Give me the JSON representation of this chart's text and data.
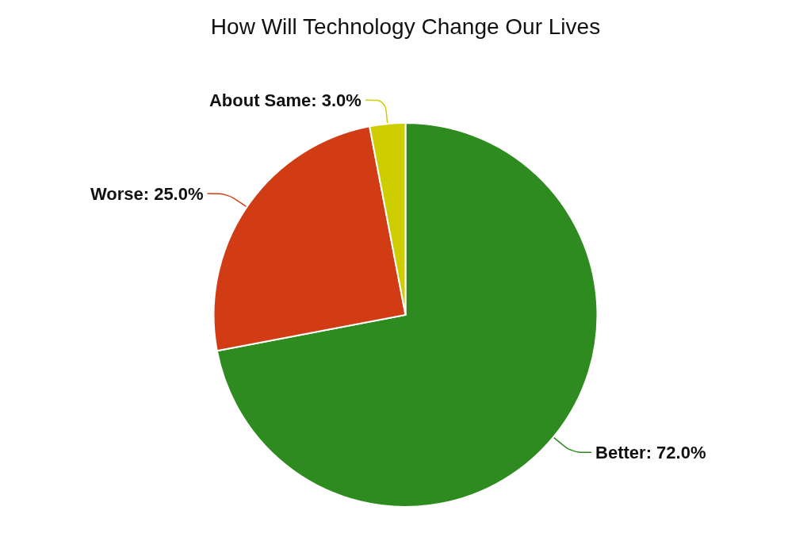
{
  "chart_data": {
    "type": "pie",
    "title": "How Will Technology Change Our Lives",
    "categories": [
      "Better",
      "Worse",
      "About Same"
    ],
    "values": [
      72,
      25,
      3
    ],
    "colors": [
      "#2e8b1f",
      "#d23c14",
      "#cdcd00"
    ],
    "value_labels": [
      "72.0%",
      "25.0%",
      "3.0%"
    ],
    "legend": false
  }
}
